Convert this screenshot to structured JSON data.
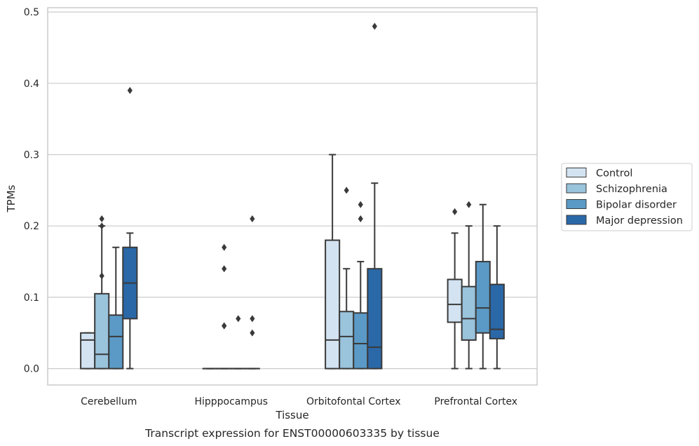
{
  "chart_data": {
    "type": "box",
    "xlabel": "Tissue",
    "ylabel": "TPMs",
    "caption": "Transcript expression for ENST00000603335 by tissue",
    "ylim": [
      -0.023,
      0.506
    ],
    "yticks": [
      0.0,
      0.1,
      0.2,
      0.3,
      0.4,
      0.5
    ],
    "ytick_labels": [
      "0.0",
      "0.1",
      "0.2",
      "0.3",
      "0.4",
      "0.5"
    ],
    "grid": true,
    "legend_position": "right",
    "categories": [
      "Cerebellum",
      "Hipppocampus",
      "Orbitofontal Cortex",
      "Prefrontal Cortex"
    ],
    "series": [
      {
        "name": "Control",
        "color": "#d3e3f1",
        "boxes": [
          {
            "min": 0.0,
            "q1": 0.0,
            "median": 0.04,
            "q3": 0.05,
            "max": 0.05,
            "outliers": []
          },
          {
            "min": 0.0,
            "q1": 0.0,
            "median": 0.0,
            "q3": 0.0,
            "max": 0.0,
            "outliers": []
          },
          {
            "min": 0.0,
            "q1": 0.0,
            "median": 0.04,
            "q3": 0.18,
            "max": 0.3,
            "outliers": []
          },
          {
            "min": 0.0,
            "q1": 0.065,
            "median": 0.09,
            "q3": 0.125,
            "max": 0.19,
            "outliers": [
              0.22
            ]
          }
        ]
      },
      {
        "name": "Schizophrenia",
        "color": "#9ac3dc",
        "boxes": [
          {
            "min": 0.0,
            "q1": 0.0,
            "median": 0.02,
            "q3": 0.105,
            "max": 0.2,
            "outliers": [
              0.13,
              0.2,
              0.21
            ]
          },
          {
            "min": 0.0,
            "q1": 0.0,
            "median": 0.0,
            "q3": 0.0,
            "max": 0.0,
            "outliers": [
              0.06,
              0.06,
              0.14,
              0.17
            ]
          },
          {
            "min": 0.0,
            "q1": 0.0,
            "median": 0.045,
            "q3": 0.08,
            "max": 0.14,
            "outliers": [
              0.25
            ]
          },
          {
            "min": 0.0,
            "q1": 0.04,
            "median": 0.07,
            "q3": 0.115,
            "max": 0.2,
            "outliers": [
              0.23
            ]
          }
        ]
      },
      {
        "name": "Bipolar disorder",
        "color": "#5b9ac6",
        "boxes": [
          {
            "min": 0.0,
            "q1": 0.0,
            "median": 0.045,
            "q3": 0.075,
            "max": 0.17,
            "outliers": []
          },
          {
            "min": 0.0,
            "q1": 0.0,
            "median": 0.0,
            "q3": 0.0,
            "max": 0.0,
            "outliers": [
              0.07
            ]
          },
          {
            "min": 0.0,
            "q1": 0.0,
            "median": 0.035,
            "q3": 0.078,
            "max": 0.15,
            "outliers": [
              0.21,
              0.23
            ]
          },
          {
            "min": 0.0,
            "q1": 0.05,
            "median": 0.085,
            "q3": 0.15,
            "max": 0.23,
            "outliers": []
          }
        ]
      },
      {
        "name": "Major depression",
        "color": "#2a68a8",
        "boxes": [
          {
            "min": 0.0,
            "q1": 0.07,
            "median": 0.12,
            "q3": 0.17,
            "max": 0.19,
            "outliers": [
              0.39
            ]
          },
          {
            "min": 0.0,
            "q1": 0.0,
            "median": 0.0,
            "q3": 0.0,
            "max": 0.0,
            "outliers": [
              0.05,
              0.07,
              0.21
            ]
          },
          {
            "min": 0.0,
            "q1": 0.0,
            "median": 0.03,
            "q3": 0.14,
            "max": 0.26,
            "outliers": [
              0.48
            ]
          },
          {
            "min": 0.0,
            "q1": 0.042,
            "median": 0.055,
            "q3": 0.118,
            "max": 0.2,
            "outliers": []
          }
        ]
      }
    ]
  }
}
